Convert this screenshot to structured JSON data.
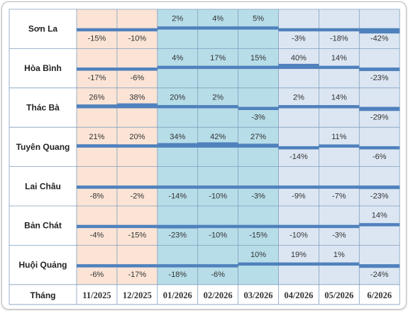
{
  "chart_data": {
    "type": "table",
    "x_label": "Tháng",
    "months": [
      "11/2025",
      "12/2025",
      "01/2026",
      "02/2026",
      "03/2026",
      "04/2026",
      "05/2026",
      "6/2026"
    ],
    "rows": [
      {
        "name": "Sơn La",
        "values": [
          -15,
          -10,
          2,
          4,
          5,
          -3,
          -18,
          -42
        ]
      },
      {
        "name": "Hòa Bình",
        "values": [
          -17,
          -6,
          4,
          17,
          15,
          40,
          14,
          -23
        ]
      },
      {
        "name": "Thác Bà",
        "values": [
          26,
          38,
          20,
          2,
          -3,
          2,
          14,
          -29
        ]
      },
      {
        "name": "Tuyên Quang",
        "values": [
          21,
          20,
          34,
          42,
          27,
          -14,
          11,
          -6
        ]
      },
      {
        "name": "Lai Châu",
        "values": [
          -8,
          -2,
          -14,
          -10,
          -3,
          -9,
          -7,
          -23
        ]
      },
      {
        "name": "Bản Chát",
        "values": [
          -4,
          -15,
          -23,
          -10,
          -15,
          -10,
          -3,
          14
        ]
      },
      {
        "name": "Huội Quảng",
        "values": [
          -6,
          -17,
          -18,
          -6,
          10,
          19,
          1,
          -24
        ]
      }
    ],
    "bar_color": "#4f81bd",
    "column_colors": [
      "#fbe4d5",
      "#fbe4d5",
      "#b7dde8",
      "#b7dde8",
      "#b7dde8",
      "#dce6f2",
      "#dce6f2",
      "#dce6f2"
    ],
    "grid": true
  }
}
